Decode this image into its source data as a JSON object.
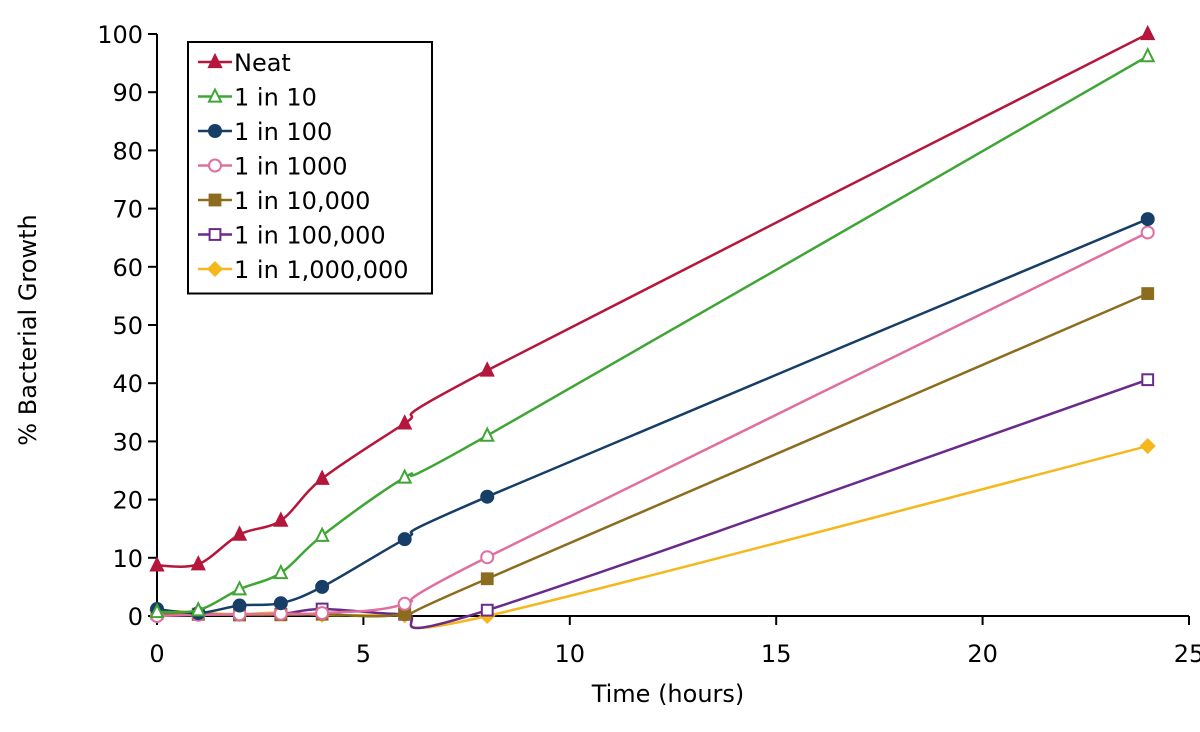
{
  "chart_data": {
    "type": "line",
    "title": "",
    "xlabel": "Time (hours)",
    "ylabel": "% Bacterial Growth",
    "xlim": [
      0,
      25
    ],
    "ylim": [
      0,
      100
    ],
    "xticks": [
      0,
      5,
      10,
      15,
      20,
      25
    ],
    "yticks": [
      0,
      10,
      20,
      30,
      40,
      50,
      60,
      70,
      80,
      90,
      100
    ],
    "grid": false,
    "legend_position": "top-left",
    "series": [
      {
        "name": "Neat",
        "color": "#b5163b",
        "marker": "triangle",
        "filled": true,
        "x": [
          0,
          1,
          2,
          3,
          4,
          6,
          8,
          24
        ],
        "y": [
          8.7,
          8.9,
          14.0,
          16.4,
          23.6,
          33.1,
          42.2,
          100
        ]
      },
      {
        "name": "1 in 10",
        "color": "#3fa535",
        "marker": "triangle",
        "filled": false,
        "x": [
          0,
          1,
          2,
          3,
          4,
          6,
          8,
          24
        ],
        "y": [
          0.7,
          1.0,
          4.6,
          7.4,
          13.8,
          23.8,
          31.0,
          96.2
        ]
      },
      {
        "name": "1 in 100",
        "color": "#163e66",
        "marker": "circle",
        "filled": true,
        "x": [
          0,
          1,
          2,
          3,
          4,
          6,
          8,
          24
        ],
        "y": [
          1.2,
          0.5,
          1.8,
          2.2,
          5.0,
          13.2,
          20.5,
          68.2
        ]
      },
      {
        "name": "1 in 1000",
        "color": "#e06fa0",
        "marker": "circle",
        "filled": false,
        "x": [
          0,
          1,
          2,
          3,
          4,
          6,
          8,
          24
        ],
        "y": [
          0.0,
          0.2,
          0.3,
          0.4,
          0.5,
          2.1,
          10.1,
          65.9
        ]
      },
      {
        "name": "1 in 10,000",
        "color": "#8c6d1f",
        "marker": "square",
        "filled": true,
        "x": [
          0,
          1,
          2,
          3,
          4,
          6,
          8,
          24
        ],
        "y": [
          0.5,
          0.3,
          0.2,
          0.2,
          0.3,
          0.4,
          6.4,
          55.4
        ]
      },
      {
        "name": "1 in 100,000",
        "color": "#6a2a8a",
        "marker": "square",
        "filled": false,
        "x": [
          0,
          1,
          2,
          3,
          4,
          6,
          8,
          24
        ],
        "y": [
          0.4,
          0.3,
          0.2,
          0.3,
          1.2,
          0.3,
          1.0,
          40.6
        ]
      },
      {
        "name": "1 in 1,000,000",
        "color": "#f5b71c",
        "marker": "diamond",
        "filled": true,
        "x": [
          0,
          1,
          2,
          3,
          4,
          6,
          8,
          24
        ],
        "y": [
          1.0,
          0.6,
          0.3,
          0.6,
          0.2,
          0.1,
          0.0,
          29.2
        ]
      }
    ]
  }
}
